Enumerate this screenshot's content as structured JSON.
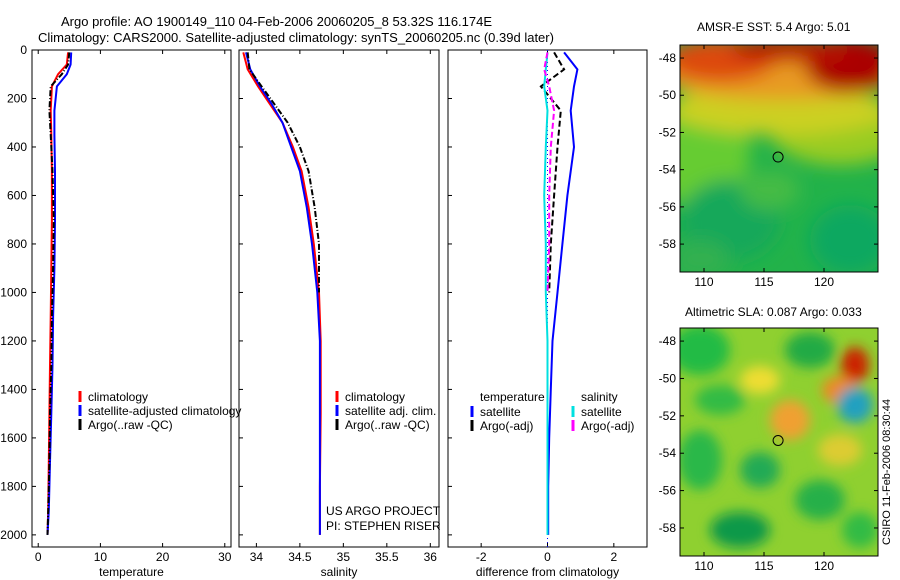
{
  "header": {
    "line1": "Argo profile: AO 1900149_110 04-Feb-2006 20060205_8 53.32S 116.174E",
    "line2": "Climatology: CARS2000. Satellite-adjusted climatology: synTS_20060205.nc (0.39d later)"
  },
  "colors": {
    "climatology": "#ff0000",
    "satellite": "#0000ff",
    "argo": "#000000",
    "salinity_sat": "#00e0e0",
    "salinity_argo": "#ff00ff"
  },
  "chart_data": [
    {
      "type": "line",
      "id": "temperature",
      "xlabel": "temperature",
      "ylabel": "",
      "xlim": [
        -1,
        31
      ],
      "ylim": [
        2050,
        0
      ],
      "xticks": [
        0,
        10,
        20,
        30
      ],
      "xticklabels": [
        "0",
        "10",
        "20",
        "30"
      ],
      "yticks": [
        0,
        200,
        400,
        600,
        800,
        1000,
        1200,
        1400,
        1600,
        1800,
        2000
      ],
      "yticklabels": [
        "0",
        "200",
        "400",
        "600",
        "800",
        "1000",
        "1200",
        "1400",
        "1600",
        "1800",
        "2000"
      ],
      "legend": [
        "climatology",
        "satellite-adjusted climatology",
        "Argo(..raw -QC)"
      ],
      "series": [
        {
          "name": "climatology",
          "color": "#ff0000",
          "style": "solid",
          "x": [
            4.8,
            4.6,
            3.2,
            2.2,
            2.0,
            2.1,
            2.2,
            2.2,
            2.1,
            2.0,
            1.9,
            1.8,
            1.7,
            1.6,
            1.5
          ],
          "y": [
            10,
            60,
            100,
            150,
            250,
            350,
            500,
            700,
            900,
            1100,
            1300,
            1500,
            1700,
            1900,
            2000
          ]
        },
        {
          "name": "satellite-adjusted climatology",
          "color": "#0000ff",
          "style": "solid",
          "x": [
            5.3,
            5.2,
            4.6,
            3.0,
            2.6,
            2.6,
            2.7,
            2.7,
            2.6,
            2.4,
            2.3,
            2.1,
            1.9,
            1.7,
            1.5
          ],
          "y": [
            10,
            60,
            100,
            150,
            250,
            350,
            500,
            700,
            900,
            1100,
            1300,
            1500,
            1700,
            1900,
            2000
          ]
        },
        {
          "name": "Argo(..raw -QC)",
          "color": "#000000",
          "style": "dashdot",
          "x": [
            5.0,
            4.8,
            3.8,
            2.0,
            1.8,
            2.0,
            2.3,
            2.5,
            2.4,
            2.2,
            2.1,
            1.9,
            1.8,
            1.6,
            1.5
          ],
          "y": [
            10,
            60,
            100,
            150,
            250,
            350,
            500,
            700,
            900,
            1100,
            1300,
            1500,
            1700,
            1900,
            2000
          ]
        }
      ]
    },
    {
      "type": "line",
      "id": "salinity",
      "xlabel": "salinity",
      "ylabel": "",
      "xlim": [
        33.8,
        36.1
      ],
      "ylim": [
        2050,
        0
      ],
      "xticks": [
        34,
        34.5,
        35,
        35.5,
        36
      ],
      "xticklabels": [
        "34",
        "34.5",
        "35",
        "35.5",
        "36"
      ],
      "legend": [
        "climatology",
        "satellite adj. clim.",
        "Argo(..raw -QC)"
      ],
      "annotation": [
        "US ARGO PROJECT",
        "PI: STEPHEN RISER"
      ],
      "series": [
        {
          "name": "climatology",
          "color": "#ff0000",
          "style": "solid",
          "x": [
            33.85,
            33.9,
            34.02,
            34.15,
            34.3,
            34.42,
            34.52,
            34.6,
            34.66,
            34.72,
            34.74,
            34.74,
            34.73,
            34.73
          ],
          "y": [
            10,
            80,
            150,
            220,
            300,
            400,
            500,
            650,
            800,
            1000,
            1200,
            1500,
            1800,
            2000
          ]
        },
        {
          "name": "satellite adj. clim.",
          "color": "#0000ff",
          "style": "solid",
          "x": [
            33.88,
            33.93,
            34.04,
            34.17,
            34.3,
            34.4,
            34.5,
            34.58,
            34.64,
            34.7,
            34.73,
            34.73,
            34.73,
            34.73
          ],
          "y": [
            10,
            80,
            150,
            220,
            300,
            400,
            500,
            650,
            800,
            1000,
            1200,
            1500,
            1800,
            2000
          ]
        },
        {
          "name": "Argo(..raw -QC)",
          "color": "#000000",
          "style": "dashdot",
          "x": [
            33.9,
            33.92,
            34.06,
            34.2,
            34.36,
            34.5,
            34.6,
            34.67,
            34.72,
            34.72
          ],
          "y": [
            10,
            80,
            150,
            220,
            300,
            400,
            500,
            650,
            800,
            1000
          ]
        }
      ]
    },
    {
      "type": "line",
      "id": "difference",
      "xlabel": "difference from climatology",
      "ylabel": "",
      "xlim": [
        -3,
        3
      ],
      "ylim": [
        2050,
        0
      ],
      "xticks": [
        -2,
        0,
        2
      ],
      "xticklabels": [
        "-2",
        "0",
        "2"
      ],
      "legend_groups": [
        {
          "heading": "temperature",
          "items": [
            "satellite",
            "Argo(-adj)"
          ]
        },
        {
          "heading": "salinity",
          "items": [
            "satellite",
            "Argo(-adj)"
          ]
        }
      ],
      "series": [
        {
          "name": "temperature satellite",
          "color": "#0000ff",
          "style": "solid",
          "x": [
            0.5,
            0.9,
            0.8,
            0.7,
            0.8,
            0.6,
            0.45,
            0.3,
            0.15,
            0.1,
            0.05,
            0.02,
            0.02
          ],
          "y": [
            10,
            80,
            150,
            250,
            400,
            600,
            800,
            1000,
            1200,
            1400,
            1600,
            1800,
            2000
          ]
        },
        {
          "name": "temperature Argo(-adj)",
          "color": "#000000",
          "style": "dashed",
          "x": [
            0.2,
            0.5,
            -0.2,
            0.4,
            0.3,
            0.2,
            0.1,
            0.05
          ],
          "y": [
            10,
            80,
            150,
            250,
            400,
            600,
            800,
            1000
          ]
        },
        {
          "name": "salinity satellite",
          "color": "#00e0e0",
          "style": "solid",
          "x": [
            0.0,
            -0.05,
            -0.1,
            0.0,
            -0.05,
            -0.1,
            -0.05,
            -0.05,
            0.0,
            0.0,
            0.0,
            0.0,
            0.0
          ],
          "y": [
            10,
            80,
            150,
            250,
            400,
            600,
            800,
            1000,
            1200,
            1400,
            1600,
            1800,
            2000
          ]
        },
        {
          "name": "salinity Argo(-adj)",
          "color": "#ff00ff",
          "style": "dashed",
          "x": [
            0.0,
            -0.1,
            0.05,
            0.2,
            0.1,
            0.05,
            0.05,
            0.0
          ],
          "y": [
            10,
            80,
            150,
            250,
            400,
            600,
            800,
            1000
          ]
        }
      ]
    },
    {
      "type": "heatmap",
      "id": "sst-map",
      "title": "AMSR-E SST: 5.4 Argo: 5.01",
      "xlim": [
        108,
        124.5
      ],
      "ylim": [
        -59.5,
        -47.3
      ],
      "xticks": [
        110,
        115,
        120
      ],
      "xticklabels": [
        "110",
        "115",
        "120"
      ],
      "yticks": [
        -48,
        -50,
        -52,
        -54,
        -56,
        -58
      ],
      "yticklabels": [
        "-48",
        "-50",
        "-52",
        "-54",
        "-56",
        "-58"
      ],
      "marker": {
        "lon": 116.174,
        "lat": -53.32
      }
    },
    {
      "type": "heatmap",
      "id": "sla-map",
      "title": "Altimetric SLA: 0.087 Argo: 0.033",
      "xlim": [
        108,
        124.5
      ],
      "ylim": [
        -59.5,
        -47.3
      ],
      "xticks": [
        110,
        115,
        120
      ],
      "xticklabels": [
        "110",
        "115",
        "120"
      ],
      "yticks": [
        -48,
        -50,
        -52,
        -54,
        -56,
        -58
      ],
      "yticklabels": [
        "-48",
        "-50",
        "-52",
        "-54",
        "-56",
        "-58"
      ],
      "marker": {
        "lon": 116.174,
        "lat": -53.32
      },
      "side_label": "CSIRO 11-Feb-2006 08:30:44"
    }
  ]
}
